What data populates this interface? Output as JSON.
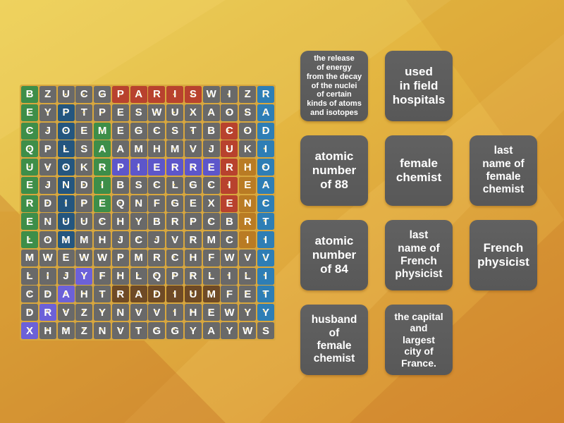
{
  "activity": {
    "type": "wordsearch",
    "board": {
      "rows": [
        "BZUCGPARISWIZR",
        "EYPTPESWUXAOSA",
        "CJOEMEGCSTBCOD",
        "QPLSAAMHMVJUKI",
        "UVOKRPIERRERHO",
        "EJNDIBSCLGCIEA",
        "RDIPEQNFGEXENC",
        "ENUUCHYBRPCBRT",
        "LOMMHJCJVRMCII",
        "MWEWWPMRCHFWVV",
        "LIJYFHLQPRLILI",
        "CDAHTRADIUMFET",
        "DRVZYNVVIHEWYY",
        "XHMZNVTGGYAYWS"
      ],
      "colors": {
        "tile_default": "#696969",
        "grid_lines": "#d8a73e",
        "letter": "#ffffff"
      },
      "found_words": [
        {
          "word": "PARIS",
          "color": "#b8422e",
          "cells": [
            [
              1,
              6
            ],
            [
              1,
              7
            ],
            [
              1,
              8
            ],
            [
              1,
              9
            ],
            [
              1,
              10
            ]
          ]
        },
        {
          "word": "BECQUEREL",
          "color": "#3e8e49",
          "cells": [
            [
              1,
              1
            ],
            [
              2,
              1
            ],
            [
              3,
              1
            ],
            [
              4,
              1
            ],
            [
              5,
              1
            ],
            [
              6,
              1
            ],
            [
              7,
              1
            ],
            [
              8,
              1
            ],
            [
              9,
              1
            ]
          ]
        },
        {
          "word": "POLONIUM",
          "color": "#24567f",
          "cells": [
            [
              2,
              3
            ],
            [
              3,
              3
            ],
            [
              4,
              3
            ],
            [
              5,
              3
            ],
            [
              6,
              3
            ],
            [
              7,
              3
            ],
            [
              8,
              3
            ],
            [
              9,
              3
            ]
          ]
        },
        {
          "word": "MARIE",
          "color": "#3e8e49",
          "cells": [
            [
              3,
              5
            ],
            [
              4,
              5
            ],
            [
              5,
              5
            ],
            [
              6,
              5
            ],
            [
              7,
              5
            ]
          ]
        },
        {
          "word": "CURIE",
          "color": "#b8422e",
          "cells": [
            [
              3,
              12
            ],
            [
              4,
              12
            ],
            [
              5,
              12
            ],
            [
              6,
              12
            ],
            [
              7,
              12
            ]
          ]
        },
        {
          "word": "PIERRE",
          "color": "#5d56ca",
          "cells": [
            [
              5,
              6
            ],
            [
              5,
              7
            ],
            [
              5,
              8
            ],
            [
              5,
              9
            ],
            [
              5,
              10
            ],
            [
              5,
              11
            ]
          ]
        },
        {
          "word": "HENRI",
          "color": "#b97b24",
          "cells": [
            [
              5,
              13
            ],
            [
              6,
              13
            ],
            [
              7,
              13
            ],
            [
              8,
              13
            ],
            [
              9,
              13
            ]
          ]
        },
        {
          "word": "RADIOACTIVITY",
          "color": "#2e7eb5",
          "cells": [
            [
              1,
              14
            ],
            [
              2,
              14
            ],
            [
              3,
              14
            ],
            [
              4,
              14
            ],
            [
              5,
              14
            ],
            [
              6,
              14
            ],
            [
              7,
              14
            ],
            [
              8,
              14
            ],
            [
              9,
              14
            ],
            [
              10,
              14
            ],
            [
              11,
              14
            ],
            [
              12,
              14
            ],
            [
              13,
              14
            ]
          ]
        },
        {
          "word": "RADIUM",
          "color": "#6e4a26",
          "cells": [
            [
              12,
              6
            ],
            [
              12,
              7
            ],
            [
              12,
              8
            ],
            [
              12,
              9
            ],
            [
              12,
              10
            ],
            [
              12,
              11
            ]
          ]
        },
        {
          "word": "XRAY",
          "color": "#6c61d8",
          "cells": [
            [
              14,
              1
            ],
            [
              13,
              2
            ],
            [
              12,
              3
            ],
            [
              11,
              4
            ]
          ]
        }
      ]
    },
    "clues": {
      "cards": [
        {
          "text": "the release\nof energy\nfrom the decay\nof the nuclei\nof certain\nkinds of atoms\nand isotopes"
        },
        {
          "text": "used\nin field\nhospitals"
        },
        {
          "text": "atomic\nnumber\nof 88"
        },
        {
          "text": "female\nchemist"
        },
        {
          "text": "last\nname of\nfemale\nchemist"
        },
        {
          "text": "atomic\nnumber\nof 84"
        },
        {
          "text": "last\nname of\nFrench\nphysicist"
        },
        {
          "text": "French\nphysicist"
        },
        {
          "text": "husband\nof\nfemale\nchemist"
        },
        {
          "text": "the capital\nand\nlargest\ncity of\nFrance."
        }
      ]
    }
  }
}
